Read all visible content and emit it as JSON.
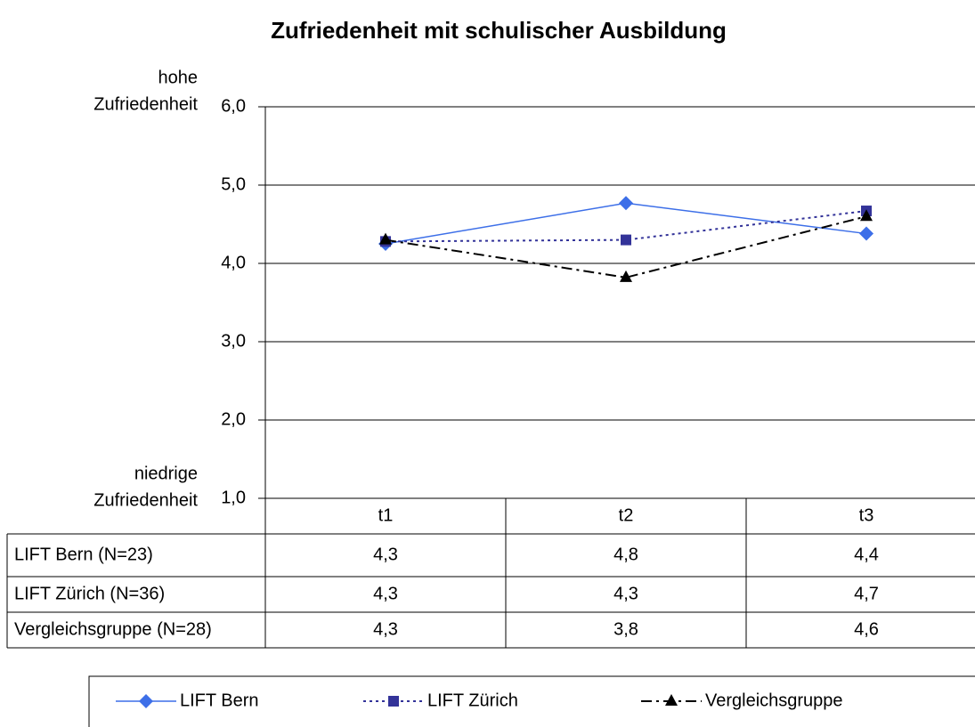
{
  "chart_data": {
    "type": "line",
    "title": "Zufriedenheit mit schulischer Ausbildung",
    "y_top_label": [
      "hohe",
      "Zufriedenheit"
    ],
    "y_bottom_label": [
      "niedrige",
      "Zufriedenheit"
    ],
    "categories": [
      "t1",
      "t2",
      "t3"
    ],
    "ylim": [
      1,
      6
    ],
    "yticks": [
      {
        "value": 1,
        "label": "1,0"
      },
      {
        "value": 2,
        "label": "2,0"
      },
      {
        "value": 3,
        "label": "3,0"
      },
      {
        "value": 4,
        "label": "4,0"
      },
      {
        "value": 5,
        "label": "5,0"
      },
      {
        "value": 6,
        "label": "6,0"
      }
    ],
    "grid": true,
    "series": [
      {
        "name": "LIFT Bern",
        "table_label": "LIFT Bern (N=23)",
        "color": "#3d6fe8",
        "dash": "solid",
        "marker": "diamond",
        "values": [
          4.25,
          4.77,
          4.38
        ],
        "value_labels": [
          "4,3",
          "4,8",
          "4,4"
        ]
      },
      {
        "name": "LIFT Zürich",
        "table_label": "LIFT Zürich (N=36)",
        "color": "#333399",
        "dash": "dotted",
        "marker": "square",
        "values": [
          4.28,
          4.3,
          4.67
        ],
        "value_labels": [
          "4,3",
          "4,3",
          "4,7"
        ]
      },
      {
        "name": "Vergleichsgruppe",
        "table_label": "Vergleichsgruppe (N=28)",
        "color": "#000000",
        "dash": "dashdot",
        "marker": "triangle",
        "values": [
          4.3,
          3.82,
          4.6
        ],
        "value_labels": [
          "4,3",
          "3,8",
          "4,6"
        ]
      }
    ]
  }
}
